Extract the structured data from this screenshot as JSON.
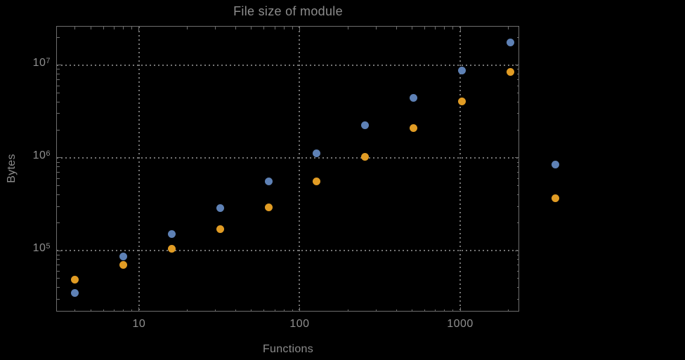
{
  "page": {
    "background_color": "#000000"
  },
  "chart_data": {
    "type": "scatter",
    "title": "File size of module",
    "xlabel": "Functions",
    "ylabel": "Bytes",
    "x_scale": "log",
    "y_scale": "log",
    "xlim": [
      3.08,
      2330
    ],
    "ylim": [
      22000,
      26000000
    ],
    "grid": "dotted gray gridlines at decade majors, framed plot with inward ticks on all four sides",
    "legend_position": "none",
    "x_major_ticks": [
      {
        "value": 10,
        "label": "10"
      },
      {
        "value": 100,
        "label": "100"
      },
      {
        "value": 1000,
        "label": "1000"
      }
    ],
    "y_major_ticks": [
      {
        "value": 100000,
        "mantissa": "10",
        "exponent": "5"
      },
      {
        "value": 1000000,
        "mantissa": "10",
        "exponent": "6"
      },
      {
        "value": 10000000,
        "mantissa": "10",
        "exponent": "7"
      }
    ],
    "series": [
      {
        "name": "series-blue",
        "color": "#5E81B5",
        "points": [
          [
            4,
            35000
          ],
          [
            8,
            87000
          ],
          [
            16,
            152000
          ],
          [
            32,
            290000
          ],
          [
            64,
            556000
          ],
          [
            128,
            1110000
          ],
          [
            256,
            2230000
          ],
          [
            512,
            4400000
          ],
          [
            1024,
            8700000
          ],
          [
            2048,
            17500000
          ],
          [
            3900,
            850000
          ]
        ]
      },
      {
        "name": "series-orange",
        "color": "#E19C24",
        "points": [
          [
            4,
            49000
          ],
          [
            8,
            70000
          ],
          [
            16,
            105000
          ],
          [
            32,
            170000
          ],
          [
            64,
            292000
          ],
          [
            128,
            560000
          ],
          [
            256,
            1020000
          ],
          [
            512,
            2110000
          ],
          [
            1024,
            4090000
          ],
          [
            2048,
            8400000
          ],
          [
            3900,
            370000
          ]
        ]
      }
    ],
    "colors": {
      "background": "#000000",
      "frame": "#6e6e6e",
      "grid": "#757575",
      "tick_label": "#8f8f8f",
      "axis_label": "#8c8c8c",
      "title": "#8c8c8c"
    }
  }
}
